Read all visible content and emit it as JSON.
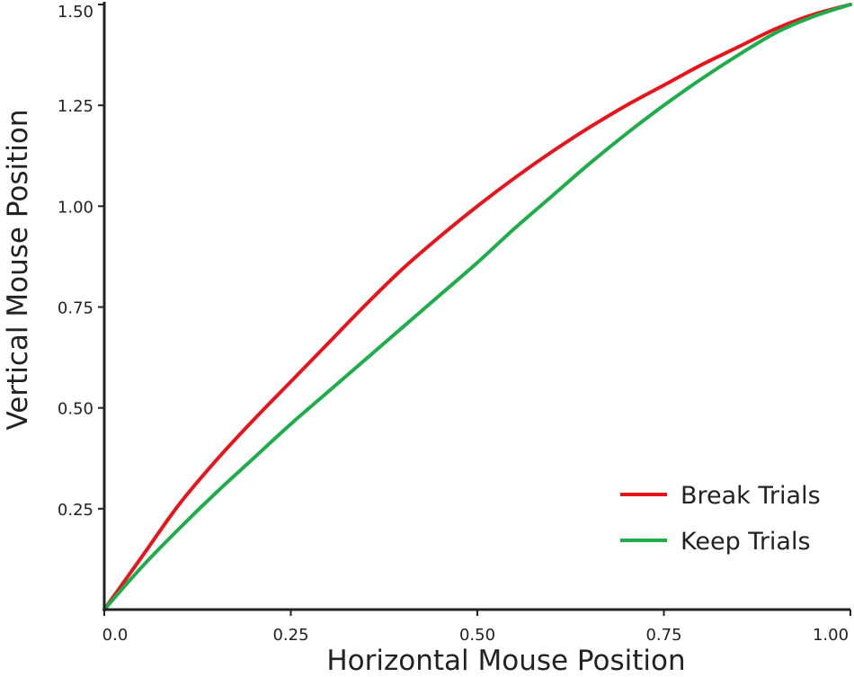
{
  "chart_data": {
    "type": "line",
    "title": "",
    "xlabel": "Horizontal Mouse Position",
    "ylabel": "Vertical Mouse Position",
    "xlim": [
      0,
      1.0
    ],
    "ylim": [
      0,
      1.5
    ],
    "x_ticks": [
      0,
      0.25,
      0.5,
      0.75,
      1.0
    ],
    "x_tick_labels": [
      "0.0",
      "0.25",
      "0.50",
      "0.75",
      "1.00"
    ],
    "y_ticks": [
      0.25,
      0.5,
      0.75,
      1.0,
      1.25,
      1.5
    ],
    "y_tick_labels": [
      "0.25",
      "0.50",
      "0.75",
      "1.00",
      "1.25",
      "1.50"
    ],
    "grid": false,
    "legend_position": "bottom-right",
    "series": [
      {
        "name": "Break Trials",
        "color": "#e8141b",
        "x": [
          0,
          0.05,
          0.1,
          0.15,
          0.2,
          0.25,
          0.3,
          0.35,
          0.4,
          0.45,
          0.5,
          0.55,
          0.6,
          0.65,
          0.7,
          0.75,
          0.8,
          0.85,
          0.9,
          0.95,
          1.0
        ],
        "y": [
          0,
          0.13,
          0.26,
          0.37,
          0.47,
          0.565,
          0.66,
          0.755,
          0.845,
          0.925,
          1.0,
          1.07,
          1.135,
          1.195,
          1.25,
          1.3,
          1.35,
          1.395,
          1.44,
          1.475,
          1.5
        ]
      },
      {
        "name": "Keep Trials",
        "color": "#1fac4b",
        "x": [
          0,
          0.05,
          0.1,
          0.15,
          0.2,
          0.25,
          0.3,
          0.35,
          0.4,
          0.45,
          0.5,
          0.55,
          0.6,
          0.65,
          0.7,
          0.75,
          0.8,
          0.85,
          0.9,
          0.95,
          1.0
        ],
        "y": [
          0,
          0.105,
          0.2,
          0.29,
          0.375,
          0.46,
          0.54,
          0.62,
          0.7,
          0.78,
          0.86,
          0.945,
          1.025,
          1.105,
          1.18,
          1.25,
          1.315,
          1.375,
          1.43,
          1.47,
          1.5
        ]
      }
    ]
  }
}
